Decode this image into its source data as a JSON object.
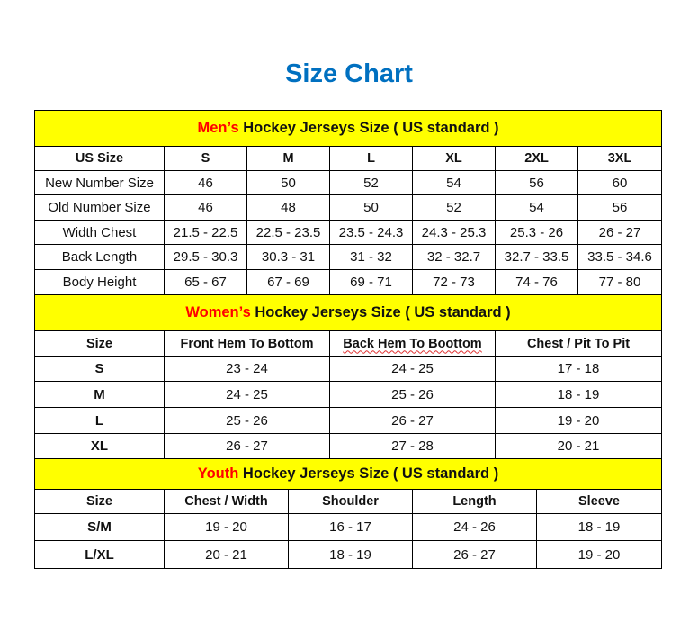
{
  "title": "Size Chart",
  "colors": {
    "title": "#0070C0",
    "section_bg": "#FFFF00",
    "highlight": "#FF0000"
  },
  "sections": [
    {
      "id": "mens",
      "highlight": "Men’s",
      "heading": " Hockey Jerseys Size ( US standard )",
      "columns": [
        "US Size",
        "S",
        "M",
        "L",
        "XL",
        "2XL",
        "3XL"
      ],
      "rows": [
        [
          "New Number Size",
          "46",
          "50",
          "52",
          "54",
          "56",
          "60"
        ],
        [
          "Old Number Size",
          "46",
          "48",
          "50",
          "52",
          "54",
          "56"
        ],
        [
          "Width Chest",
          "21.5 - 22.5",
          "22.5 - 23.5",
          "23.5 - 24.3",
          "24.3 - 25.3",
          "25.3 - 26",
          "26 - 27"
        ],
        [
          "Back Length",
          "29.5 - 30.3",
          "30.3 - 31",
          "31 - 32",
          "32 - 32.7",
          "32.7 - 33.5",
          "33.5 - 34.6"
        ],
        [
          "Body Height",
          "65 - 67",
          "67 - 69",
          "69 - 71",
          "72 - 73",
          "74 - 76",
          "77 - 80"
        ]
      ]
    },
    {
      "id": "womens",
      "highlight": "Women’s",
      "heading": " Hockey Jerseys Size ( US standard )",
      "columns": [
        "Size",
        "Front Hem To Bottom",
        "Back Hem To Boottom",
        "Chest / Pit To Pit"
      ],
      "rows": [
        [
          "S",
          "23 - 24",
          "24 - 25",
          "17 - 18"
        ],
        [
          "M",
          "24 - 25",
          "25 - 26",
          "18 - 19"
        ],
        [
          "L",
          "25 - 26",
          "26 - 27",
          "19 - 20"
        ],
        [
          "XL",
          "26 - 27",
          "27 - 28",
          "20 - 21"
        ]
      ]
    },
    {
      "id": "youth",
      "highlight": "Youth",
      "heading": " Hockey Jerseys Size ( US standard )",
      "columns": [
        "Size",
        "Chest / Width",
        "Shoulder",
        "Length",
        "Sleeve"
      ],
      "rows": [
        [
          "S/M",
          "19 - 20",
          "16 - 17",
          "24 - 26",
          "18 - 19"
        ],
        [
          "L/XL",
          "20 - 21",
          "18 - 19",
          "26 - 27",
          "19 - 20"
        ]
      ]
    }
  ]
}
